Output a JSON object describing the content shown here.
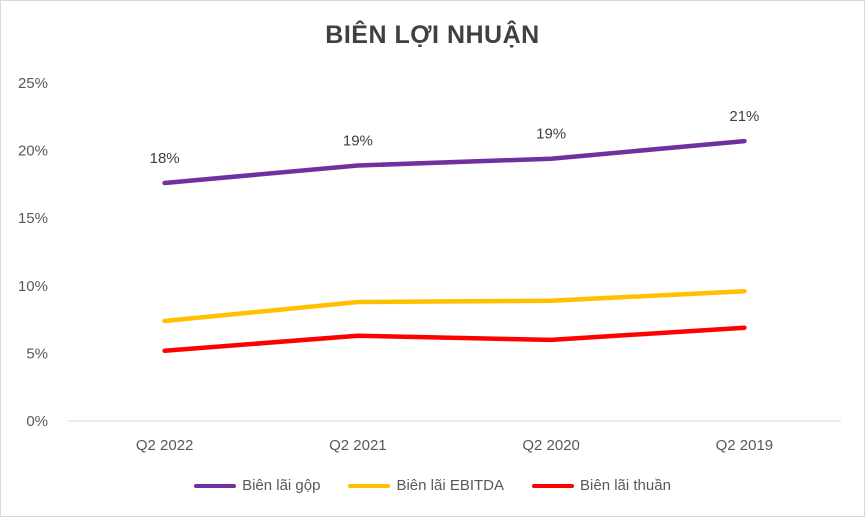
{
  "chart_data": {
    "type": "line",
    "title": "BIÊN LỢI NHUẬN",
    "categories": [
      "Q2 2022",
      "Q2 2021",
      "Q2 2020",
      "Q2 2019"
    ],
    "ylim": [
      0,
      25
    ],
    "yticks": [
      "0%",
      "5%",
      "10%",
      "15%",
      "20%",
      "25%"
    ],
    "grid": false,
    "legend_position": "bottom",
    "series": [
      {
        "name": "Biên lãi gộp",
        "color": "#7030A0",
        "values": [
          17.6,
          18.9,
          19.4,
          20.7
        ],
        "data_labels": [
          "18%",
          "19%",
          "19%",
          "21%"
        ]
      },
      {
        "name": "Biên lãi EBITDA",
        "color": "#FFC000",
        "values": [
          7.4,
          8.8,
          8.9,
          9.6
        ]
      },
      {
        "name": "Biên lãi thuần",
        "color": "#FF0000",
        "values": [
          5.2,
          6.3,
          6.0,
          6.9
        ]
      }
    ]
  }
}
